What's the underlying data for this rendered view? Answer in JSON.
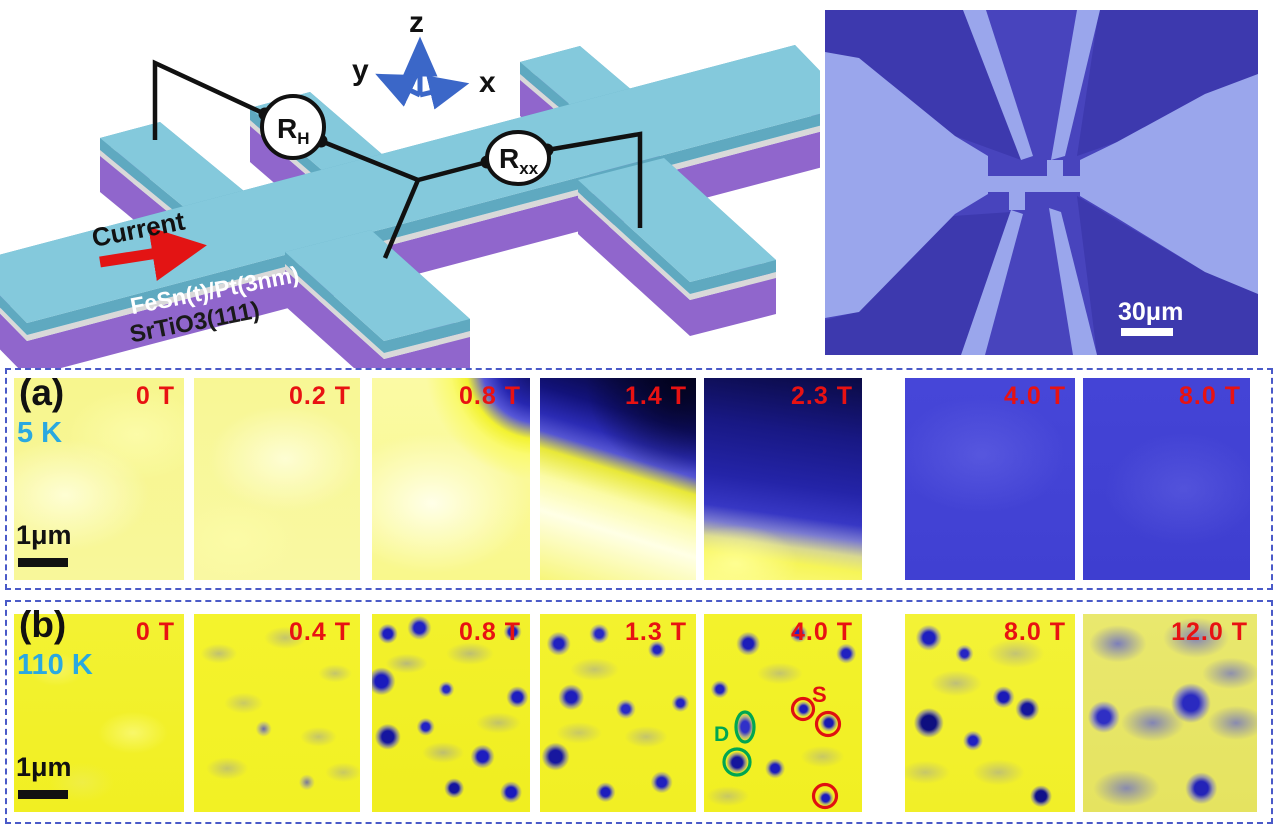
{
  "schematic": {
    "axes": {
      "x": "x",
      "y": "y",
      "z": "z"
    },
    "hall_meter": {
      "base": "R",
      "sub": "H"
    },
    "longitudinal_meter": {
      "base": "R",
      "sub": "xx"
    },
    "current_label": "Current",
    "film_label": "FeSn(t)/Pt(3nm)",
    "substrate_label": "SrTiO3(111)"
  },
  "micrograph": {
    "scale_bar_label": "30μm"
  },
  "panel_a": {
    "label": "(a)",
    "temperature": "5 K",
    "scale_bar_label": "1μm",
    "fields": [
      "0 T",
      "0.2 T",
      "0.8 T",
      "1.4 T",
      "2.3 T",
      "4.0 T",
      "8.0 T"
    ]
  },
  "panel_b": {
    "label": "(b)",
    "temperature": "110 K",
    "scale_bar_label": "1μm",
    "fields": [
      "0 T",
      "0.4 T",
      "0.8 T",
      "1.3 T",
      "4.0 T",
      "8.0 T",
      "12.0 T"
    ],
    "annotations": {
      "double_label": "D",
      "single_label": "S"
    }
  },
  "colors": {
    "field_label": "#e81212",
    "temperature_label": "#2aa9e0",
    "annotation_green": "#00a651",
    "annotation_red": "#e01010",
    "panel_border": "#4a5ac8",
    "film_top": "#84c9dc",
    "substrate_side": "#9066cc",
    "mfm_yellow": "#f2f124",
    "mfm_blue": "#4343d6"
  }
}
